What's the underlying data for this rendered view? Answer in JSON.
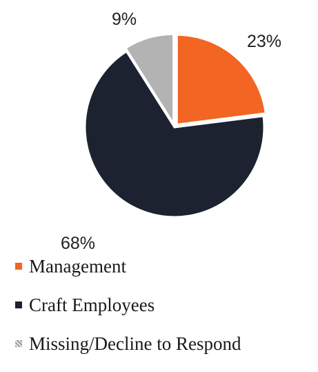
{
  "chart_data": {
    "type": "pie",
    "categories": [
      "Management",
      "Craft Employees",
      "Missing/Decline to Respond"
    ],
    "values": [
      23,
      68,
      9
    ],
    "labels": [
      "23%",
      "68%",
      "9%"
    ],
    "colors": [
      "#f26522",
      "#1c2230",
      "#b3b3b3"
    ],
    "title": "",
    "legend_position": "bottom",
    "start_angle": "12 o'clock",
    "direction": "clockwise"
  }
}
